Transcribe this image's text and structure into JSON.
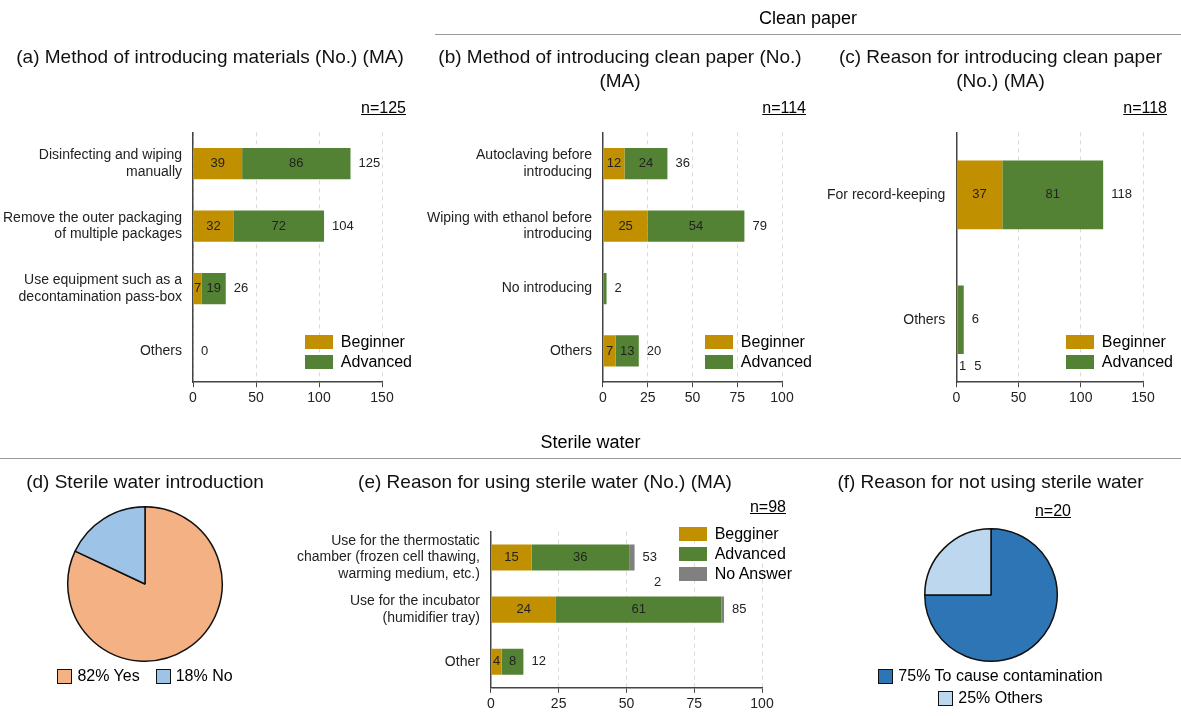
{
  "chart_data": [
    {
      "type": "bar",
      "orientation": "horizontal",
      "stacked": true,
      "title": "(a) Method of introducing materials (No.) (MA)",
      "subtitle": "n=125",
      "categories": [
        "Disinfecting and wiping manually",
        "Remove the outer packaging of multiple packages",
        "Use equipment such as a decontamination pass-box",
        "Others"
      ],
      "series": [
        {
          "name": "Beginner",
          "color": "#c09000",
          "values": [
            39,
            32,
            7,
            0
          ],
          "value_labels": [
            "39",
            "32",
            "7",
            null
          ]
        },
        {
          "name": "Advanced",
          "color": "#548235",
          "values": [
            86,
            72,
            19,
            0
          ],
          "value_labels": [
            "86",
            "72",
            "19",
            null
          ]
        }
      ],
      "totals": [
        "125",
        "104",
        "26",
        "0"
      ],
      "xlim": [
        0,
        150
      ],
      "xticks": [
        0,
        50,
        100,
        150
      ],
      "grid": "x",
      "legend": "bottom right"
    },
    {
      "type": "bar",
      "orientation": "horizontal",
      "stacked": true,
      "title": "(b) Method of introducing clean paper (No.) (MA)",
      "subtitle": "n=114",
      "annotations": [
        "Clean paper"
      ],
      "categories": [
        "Autoclaving before introducing",
        "Wiping with ethanol before introducing",
        "No introducing",
        "Others"
      ],
      "series": [
        {
          "name": "Beginner",
          "color": "#c09000",
          "values": [
            12,
            25,
            0,
            7
          ],
          "value_labels": [
            "12",
            "25",
            null,
            "7"
          ]
        },
        {
          "name": "Advanced",
          "color": "#548235",
          "values": [
            24,
            54,
            2,
            13
          ],
          "value_labels": [
            "24",
            "54",
            null,
            "13"
          ]
        }
      ],
      "totals": [
        "36",
        "79",
        "2",
        "20"
      ],
      "xlim": [
        0,
        100
      ],
      "xticks": [
        0,
        25,
        50,
        75,
        100
      ],
      "grid": "x",
      "legend": "bottom right"
    },
    {
      "type": "bar",
      "orientation": "horizontal",
      "stacked": true,
      "title": "(c) Reason for introducing clean paper (No.) (MA)",
      "subtitle": "n=118",
      "categories": [
        "For record-keeping",
        "Others"
      ],
      "series": [
        {
          "name": "Beginner",
          "color": "#c09000",
          "values": [
            37,
            1
          ],
          "value_labels": [
            "37",
            "1"
          ]
        },
        {
          "name": "Advanced",
          "color": "#548235",
          "values": [
            81,
            5
          ],
          "value_labels": [
            "81",
            "5"
          ]
        }
      ],
      "totals": [
        "118",
        "6"
      ],
      "xlim": [
        0,
        150
      ],
      "xticks": [
        0,
        50,
        100,
        150
      ],
      "grid": "x",
      "legend": "bottom right"
    },
    {
      "type": "pie",
      "title": "(d) Sterile water introduction",
      "categories": [
        "82% Yes",
        "18% No"
      ],
      "values": [
        82,
        18
      ],
      "colors": [
        "#f4b183",
        "#9dc3e6"
      ],
      "legend": "bottom"
    },
    {
      "type": "bar",
      "orientation": "horizontal",
      "stacked": true,
      "title": "(e) Reason for using sterile water (No.) (MA)",
      "subtitle": "n=98",
      "annotations": [
        "Sterile water"
      ],
      "categories": [
        "Use for the thermostatic chamber (frozen cell thawing, warming medium, etc.)",
        "Use for the incubator (humidifier tray)",
        "Other"
      ],
      "series": [
        {
          "name": "Begginer",
          "color": "#c09000",
          "values": [
            15,
            24,
            4
          ],
          "value_labels": [
            "15",
            "24",
            "4"
          ]
        },
        {
          "name": "Advanced",
          "color": "#548235",
          "values": [
            36,
            61,
            8
          ],
          "value_labels": [
            "36",
            "61",
            "8"
          ]
        },
        {
          "name": "No Answer",
          "color": "#808080",
          "values": [
            2,
            1,
            0
          ],
          "value_labels": [
            "2",
            null,
            null
          ]
        }
      ],
      "totals": [
        "53",
        "85",
        "12"
      ],
      "xlim": [
        0,
        100
      ],
      "xticks": [
        0,
        25,
        50,
        75,
        100
      ],
      "grid": "x",
      "legend": "top right"
    },
    {
      "type": "pie",
      "title": "(f) Reason for not using sterile water",
      "subtitle": "n=20",
      "categories": [
        "75% To cause contamination",
        "25% Others"
      ],
      "values": [
        75,
        25
      ],
      "colors": [
        "#2e75b6",
        "#bdd7ee"
      ],
      "legend": "bottom"
    }
  ]
}
